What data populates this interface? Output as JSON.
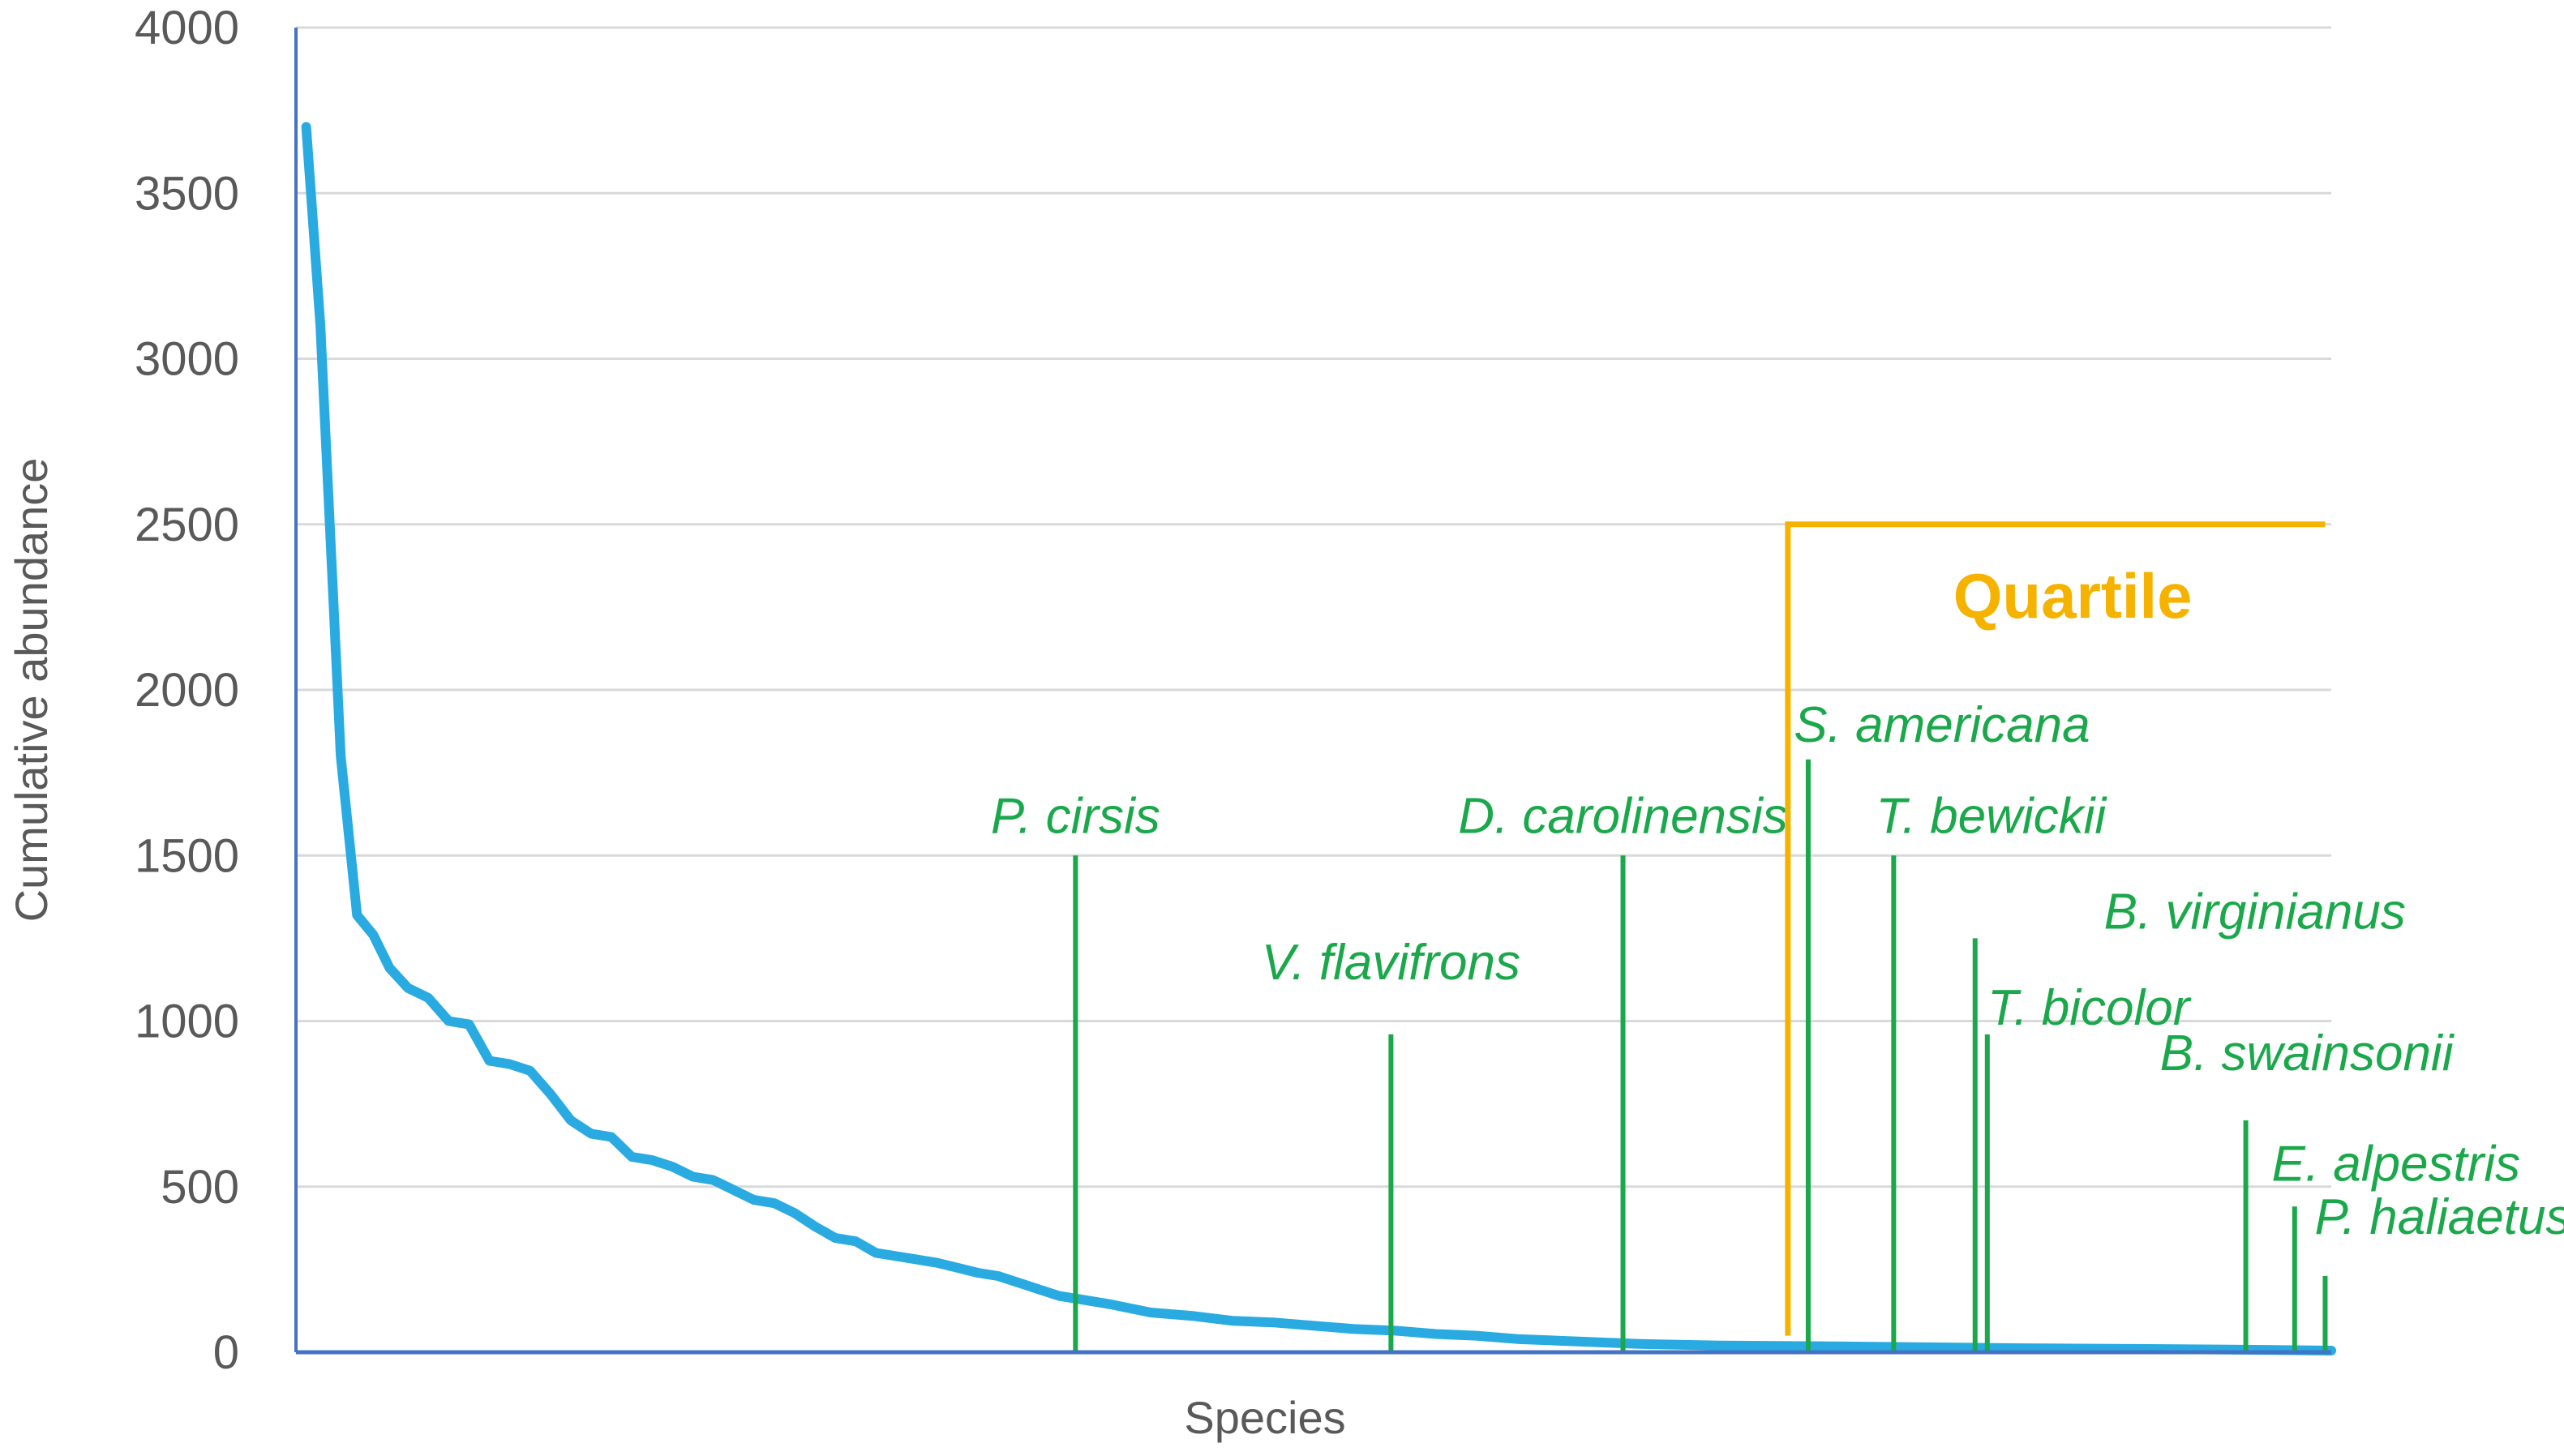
{
  "chart_data": {
    "type": "line",
    "xlabel": "Species",
    "ylabel": "Cumulative abundance",
    "ylim": [
      0,
      4000
    ],
    "yticks": [
      "0",
      "500",
      "1000",
      "1500",
      "2000",
      "2500",
      "3000",
      "3500",
      "4000"
    ],
    "xrange": [
      0,
      100
    ],
    "grid": true,
    "colors": {
      "curve": "#29ABE2",
      "marker": "#1AA84B",
      "quartile": "#F5B300",
      "axis": "#4472C4",
      "grid": "#D9D9D9"
    },
    "series": [
      {
        "x": [
          0.5,
          1.2,
          2.2,
          3.0,
          3.8,
          4.6,
          5.5,
          6.5,
          7.5,
          8.5,
          9.5,
          10.5,
          11.5,
          12.5,
          13.5,
          14.5,
          15.5,
          16.5,
          17.5,
          18.5,
          19.5,
          20.5,
          21.5,
          22.5,
          23.5,
          24.5,
          25.5,
          26.5,
          27.5,
          28.5,
          29.5,
          30.5,
          31.5,
          32.5,
          33.5,
          34.5,
          35.5,
          36.5,
          37.5,
          38.5,
          40,
          42,
          44,
          46,
          48,
          50,
          52,
          54,
          56,
          58,
          60,
          62,
          64,
          66,
          70,
          75,
          80,
          85,
          90,
          95,
          100
        ],
        "y": [
          3700,
          3100,
          1800,
          1320,
          1260,
          1160,
          1100,
          1070,
          1000,
          990,
          880,
          870,
          850,
          780,
          700,
          660,
          650,
          590,
          580,
          560,
          530,
          520,
          490,
          460,
          450,
          420,
          380,
          345,
          335,
          300,
          290,
          280,
          270,
          255,
          240,
          230,
          210,
          190,
          170,
          160,
          145,
          120,
          110,
          95,
          90,
          80,
          70,
          65,
          55,
          50,
          40,
          35,
          30,
          25,
          20,
          18,
          15,
          12,
          10,
          8,
          5
        ]
      }
    ],
    "markers": [
      {
        "label": "P. cirsis",
        "x": 38.3,
        "y": 1500
      },
      {
        "label": "V. flavifrons",
        "x": 53.8,
        "y": 960
      },
      {
        "label": "D. carolinensis",
        "x": 65.2,
        "y": 1500
      },
      {
        "label": "S. americana",
        "x": 74.3,
        "y": 1790
      },
      {
        "label": "T. bewickii",
        "x": 78.5,
        "y": 1500
      },
      {
        "label": "B. virginianus",
        "x": 82.5,
        "y": 1250
      },
      {
        "label": "T. bicolor",
        "x": 83.1,
        "y": 960
      },
      {
        "label": "B. swainsonii",
        "x": 95.8,
        "y": 700
      },
      {
        "label": "E. alpestris",
        "x": 98.2,
        "y": 440
      },
      {
        "label": "P. haliaetus",
        "x": 99.7,
        "y": 230
      }
    ],
    "quartile": {
      "label": "Quartile",
      "x_start": 73.3,
      "x_end": 99.7,
      "y_top": 2500,
      "y_bottom": 50
    }
  }
}
